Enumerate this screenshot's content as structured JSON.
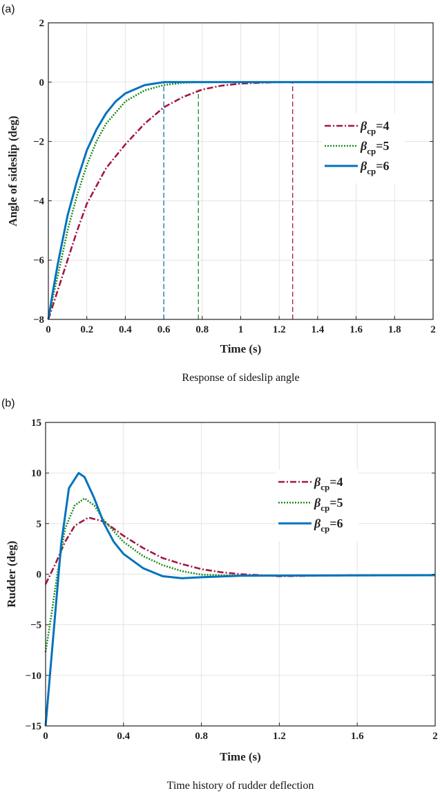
{
  "colors": {
    "beta4": "#A2173F",
    "beta5": "#1A8C1A",
    "beta6": "#0072BD"
  },
  "chart_data": [
    {
      "type": "line",
      "panel_label": "(a)",
      "caption": "Response of sideslip angle",
      "xlabel": "Time (s)",
      "ylabel": "Angle of sideslip (deg)",
      "xlim": [
        0,
        2
      ],
      "ylim": [
        -8,
        2
      ],
      "xticks": [
        "0",
        "0.2",
        "0.4",
        "0.6",
        "0.8",
        "1",
        "1.2",
        "1.4",
        "1.6",
        "1.8",
        "2"
      ],
      "xtick_values": [
        0,
        0.2,
        0.4,
        0.6,
        0.8,
        1,
        1.2,
        1.4,
        1.6,
        1.8,
        2
      ],
      "yticks": [
        "2",
        "0",
        "−2",
        "−4",
        "−6",
        "−8"
      ],
      "ytick_values": [
        2,
        0,
        -2,
        -4,
        -6,
        -8
      ],
      "grid": true,
      "legend_placement": "right",
      "series": [
        {
          "name": "βcp=4",
          "base": "β",
          "sub": "cp",
          "suffix": "=4",
          "style": "dashdot",
          "colorKey": "beta4",
          "x": [
            0,
            0.05,
            0.1,
            0.15,
            0.2,
            0.3,
            0.4,
            0.5,
            0.6,
            0.7,
            0.8,
            0.9,
            1.0,
            1.1,
            1.2,
            2
          ],
          "y": [
            -8,
            -7.0,
            -6.0,
            -5.0,
            -4.1,
            -2.9,
            -2.1,
            -1.4,
            -0.85,
            -0.5,
            -0.25,
            -0.12,
            -0.05,
            -0.02,
            0,
            0
          ]
        },
        {
          "name": "βcp=5",
          "base": "β",
          "sub": "cp",
          "suffix": "=5",
          "style": "dotted",
          "colorKey": "beta5",
          "x": [
            0,
            0.025,
            0.05,
            0.1,
            0.15,
            0.2,
            0.25,
            0.3,
            0.4,
            0.5,
            0.6,
            0.7,
            0.78,
            2
          ],
          "y": [
            -8,
            -7.2,
            -6.5,
            -5.0,
            -3.8,
            -2.8,
            -2.0,
            -1.4,
            -0.65,
            -0.28,
            -0.1,
            -0.02,
            0,
            0
          ]
        },
        {
          "name": "βcp=6",
          "base": "β",
          "sub": "cp",
          "suffix": "=6",
          "style": "solid",
          "colorKey": "beta6",
          "x": [
            0,
            0.025,
            0.05,
            0.1,
            0.15,
            0.2,
            0.25,
            0.3,
            0.35,
            0.4,
            0.5,
            0.6,
            2
          ],
          "y": [
            -8,
            -7.0,
            -6.1,
            -4.5,
            -3.3,
            -2.3,
            -1.6,
            -1.05,
            -0.65,
            -0.38,
            -0.1,
            0,
            0
          ]
        }
      ],
      "markers": [
        {
          "x": 0.6,
          "y_top": 0,
          "colorKey": "beta6"
        },
        {
          "x": 0.78,
          "y_top": -0.25,
          "colorKey": "beta5"
        },
        {
          "x": 1.27,
          "y_top": 0,
          "colorKey": "beta4"
        }
      ]
    },
    {
      "type": "line",
      "panel_label": "(b)",
      "caption": "Time history of rudder deflection",
      "xlabel": "Time (s)",
      "ylabel": "Rudder (deg)",
      "xlim": [
        0,
        2
      ],
      "ylim": [
        -15,
        15
      ],
      "xticks": [
        "0",
        "0.4",
        "0.8",
        "1.2",
        "1.6",
        "2"
      ],
      "xtick_values": [
        0,
        0.4,
        0.8,
        1.2,
        1.6,
        2
      ],
      "yticks": [
        "15",
        "10",
        "5",
        "0",
        "−5",
        "−10",
        "−15"
      ],
      "ytick_values": [
        15,
        10,
        5,
        0,
        -5,
        -10,
        -15
      ],
      "grid": true,
      "legend_placement": "top-right",
      "series": [
        {
          "name": "βcp=4",
          "base": "β",
          "sub": "cp",
          "suffix": "=4",
          "style": "dashdot",
          "colorKey": "beta4",
          "x": [
            0,
            0.05,
            0.1,
            0.15,
            0.22,
            0.3,
            0.4,
            0.5,
            0.6,
            0.7,
            0.8,
            0.9,
            1.0,
            1.2,
            1.6,
            2
          ],
          "y": [
            -1,
            1,
            3.2,
            4.8,
            5.6,
            5.2,
            3.8,
            2.6,
            1.6,
            1.0,
            0.5,
            0.2,
            0,
            -0.2,
            -0.1,
            -0.1
          ]
        },
        {
          "name": "βcp=5",
          "base": "β",
          "sub": "cp",
          "suffix": "=5",
          "style": "dotted",
          "colorKey": "beta5",
          "x": [
            0,
            0.03,
            0.06,
            0.1,
            0.15,
            0.2,
            0.25,
            0.3,
            0.4,
            0.5,
            0.6,
            0.7,
            0.8,
            1.0,
            2
          ],
          "y": [
            -7.7,
            -4,
            0,
            4.5,
            6.8,
            7.5,
            6.8,
            5.3,
            3.2,
            1.8,
            0.9,
            0.3,
            -0.05,
            -0.15,
            -0.1
          ]
        },
        {
          "name": "βcp=6",
          "base": "β",
          "sub": "cp",
          "suffix": "=6",
          "style": "solid",
          "colorKey": "beta6",
          "x": [
            0,
            0.04,
            0.08,
            0.12,
            0.17,
            0.2,
            0.25,
            0.3,
            0.35,
            0.4,
            0.5,
            0.6,
            0.7,
            0.8,
            1.0,
            2
          ],
          "y": [
            -15,
            -6,
            3,
            8.5,
            10,
            9.6,
            7.5,
            5,
            3.2,
            2,
            0.6,
            -0.2,
            -0.4,
            -0.3,
            -0.15,
            -0.1
          ]
        }
      ]
    }
  ]
}
